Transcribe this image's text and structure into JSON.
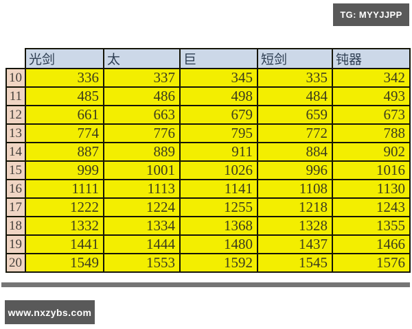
{
  "watermarks": {
    "top_right": "TG: MYYJJPP",
    "bottom_left": "www.nxzybs.com"
  },
  "chart_data": {
    "type": "table",
    "title": "",
    "columns": [
      "光剑",
      "太",
      "巨",
      "短剑",
      "钝器"
    ],
    "row_labels": [
      "10",
      "11",
      "12",
      "13",
      "14",
      "15",
      "16",
      "17",
      "18",
      "19",
      "20"
    ],
    "rows": [
      [
        336,
        337,
        345,
        335,
        342
      ],
      [
        485,
        486,
        498,
        484,
        493
      ],
      [
        661,
        663,
        679,
        659,
        673
      ],
      [
        774,
        776,
        795,
        772,
        788
      ],
      [
        887,
        889,
        911,
        884,
        902
      ],
      [
        999,
        1001,
        1026,
        996,
        1016
      ],
      [
        1111,
        1113,
        1141,
        1108,
        1130
      ],
      [
        1222,
        1224,
        1255,
        1218,
        1243
      ],
      [
        1332,
        1334,
        1368,
        1328,
        1355
      ],
      [
        1441,
        1444,
        1480,
        1437,
        1466
      ],
      [
        1549,
        1553,
        1592,
        1545,
        1576
      ]
    ]
  },
  "colors": {
    "header_bg": "#ccd8e8",
    "header_text": "#2e3e52",
    "cell_bg": "#f3ee00",
    "cell_text": "#3c3c1e",
    "row_header_bg": "#f0d5c3",
    "row_header_text": "#45403b",
    "grid_border": "#141408",
    "badge_bg": "#595959",
    "badge_text": "#ffffff",
    "shadow_bar": "#757575"
  }
}
